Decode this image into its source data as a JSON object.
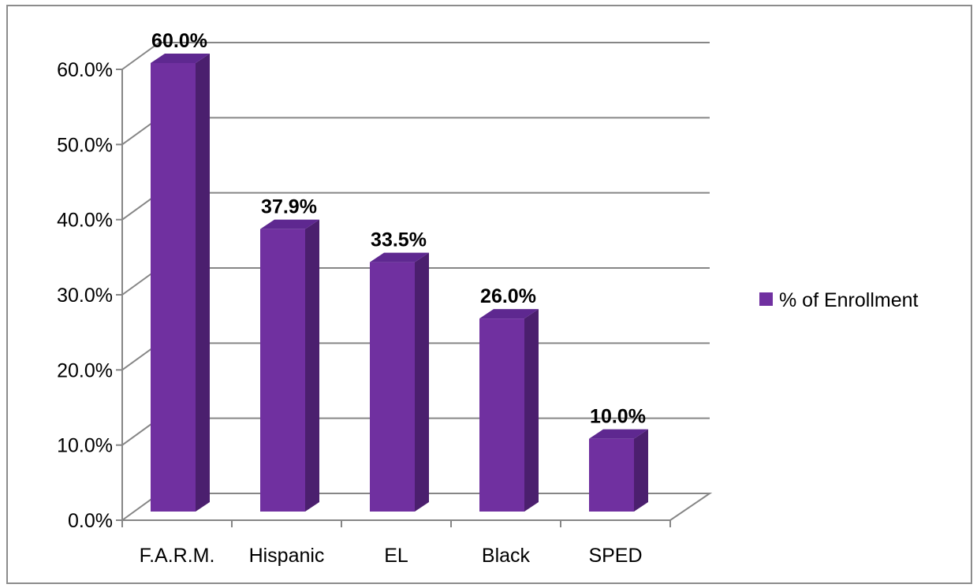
{
  "chart_data": {
    "type": "bar",
    "style": "3d-column",
    "categories": [
      "F.A.R.M.",
      "Hispanic",
      "EL",
      "Black",
      "SPED"
    ],
    "series": [
      {
        "name": "% of Enrollment",
        "values": [
          60.0,
          37.9,
          33.5,
          26.0,
          10.0
        ],
        "labels": [
          "60.0%",
          "37.9%",
          "33.5%",
          "26.0%",
          "10.0%"
        ],
        "color": "#7030A0"
      }
    ],
    "ylim": [
      0,
      60
    ],
    "yticks": [
      0,
      10,
      20,
      30,
      40,
      50,
      60
    ],
    "ytick_labels": [
      "0.0%",
      "10.0%",
      "20.0%",
      "30.0%",
      "40.0%",
      "50.0%",
      "60.0%"
    ],
    "title": "",
    "xlabel": "",
    "ylabel": "",
    "grid": true,
    "legend_position": "right"
  },
  "colors": {
    "bar_front": "#7030A0",
    "bar_side": "#4B1F6E",
    "bar_top": "#5E2890",
    "gridline": "#868686",
    "frame": "#8c8c8c"
  }
}
